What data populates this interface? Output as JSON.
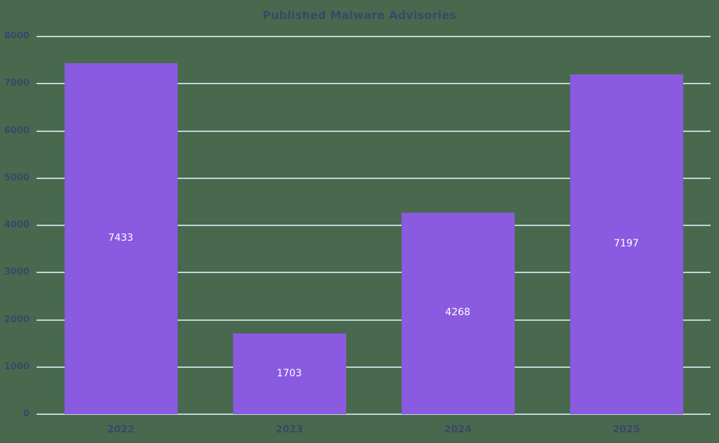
{
  "chart_data": {
    "type": "bar",
    "title": "Published Malware Advisories",
    "categories": [
      "2022",
      "2023",
      "2024",
      "2025"
    ],
    "values": [
      7433,
      1703,
      4268,
      7197
    ],
    "bar_value_labels": [
      "7433",
      "1703",
      "4268",
      "7197"
    ],
    "xlabel": "",
    "ylabel": "",
    "ylim": [
      0,
      8000
    ],
    "ytick_step": 1000,
    "ytick_labels": [
      "0",
      "1000",
      "2000",
      "3000",
      "4000",
      "5000",
      "6000",
      "7000",
      "8000"
    ],
    "grid": "horizontal",
    "legend_position": "none",
    "colors": {
      "background": "#48694e",
      "bar_fill": "#8a5ae0",
      "gridline": "#c3d5d7",
      "axis_text": "#3b4769",
      "title_text": "#3b4769",
      "bar_label_text": "#ffffff"
    }
  }
}
